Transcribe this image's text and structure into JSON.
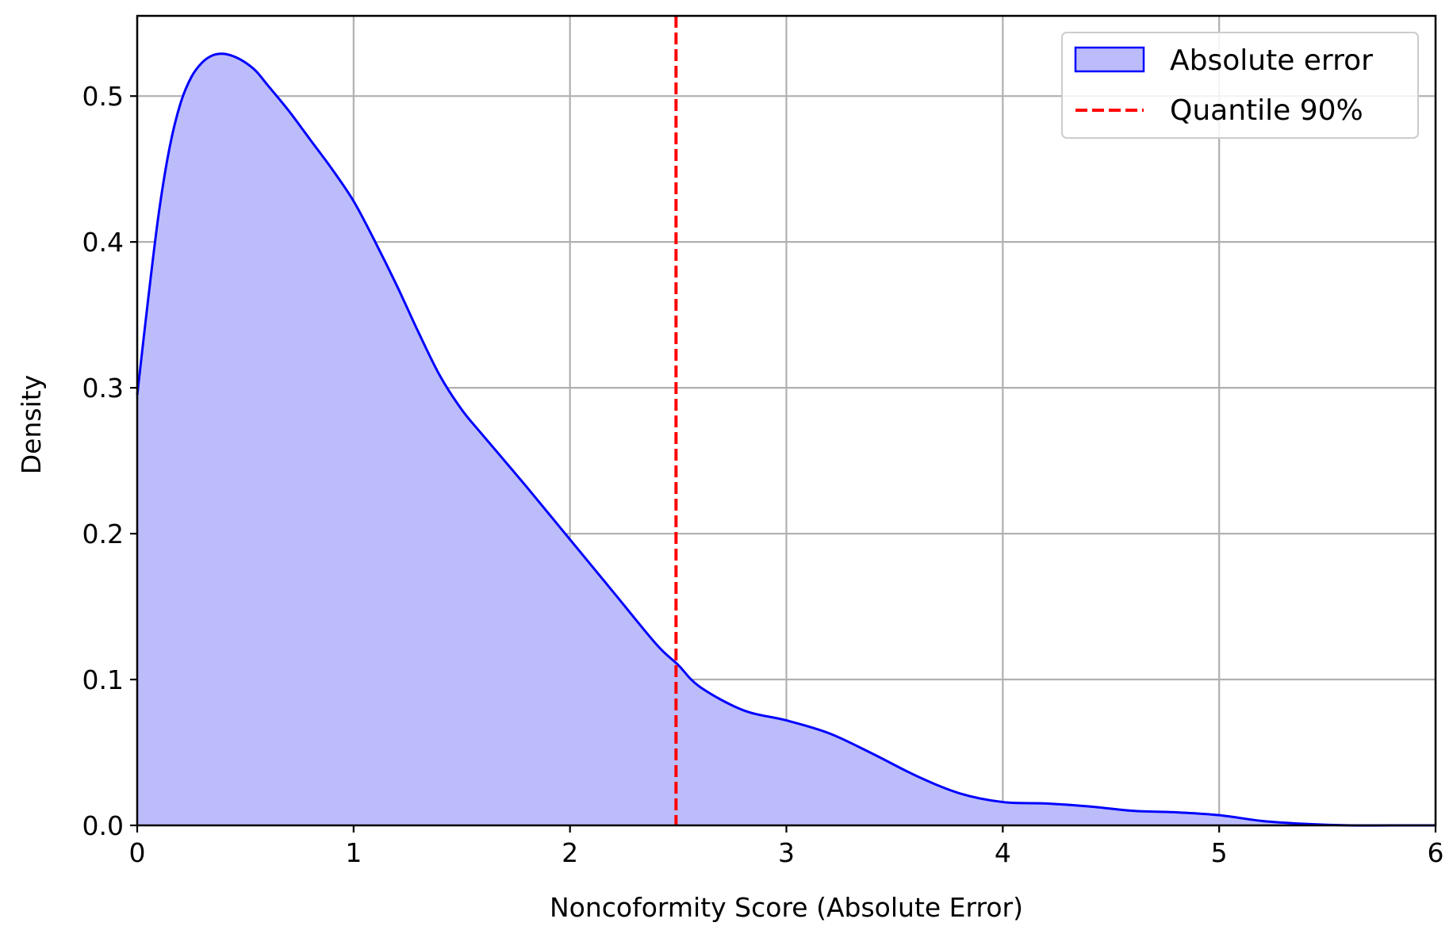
{
  "chart_data": {
    "type": "area",
    "xlabel": "Noncoformity Score (Absolute Error)",
    "ylabel": "Density",
    "xlim": [
      0,
      6
    ],
    "ylim": [
      0,
      0.555
    ],
    "xticks": [
      0,
      1,
      2,
      3,
      4,
      5,
      6
    ],
    "xtick_labels": [
      "0",
      "1",
      "2",
      "3",
      "4",
      "5",
      "6"
    ],
    "yticks": [
      0,
      0.1,
      0.2,
      0.3,
      0.4,
      0.5
    ],
    "ytick_labels": [
      "0.0",
      "0.1",
      "0.2",
      "0.3",
      "0.4",
      "0.5"
    ],
    "grid": true,
    "legend_position": "top-right",
    "series": [
      {
        "name": "Absolute error",
        "kind": "kde-fill",
        "line_color": "#0000ff",
        "fill_color": "#bcbcfb",
        "x": [
          0,
          0.05,
          0.1,
          0.15,
          0.2,
          0.25,
          0.3,
          0.35,
          0.4,
          0.45,
          0.5,
          0.55,
          0.6,
          0.7,
          0.8,
          0.9,
          1.0,
          1.1,
          1.2,
          1.3,
          1.4,
          1.5,
          1.6,
          1.8,
          2.0,
          2.2,
          2.4,
          2.5,
          2.6,
          2.8,
          3.0,
          3.2,
          3.4,
          3.6,
          3.8,
          4.0,
          4.2,
          4.4,
          4.6,
          4.8,
          5.0,
          5.2,
          5.4,
          5.6,
          5.8,
          6.0
        ],
        "y": [
          0.295,
          0.36,
          0.42,
          0.465,
          0.495,
          0.513,
          0.523,
          0.528,
          0.529,
          0.527,
          0.523,
          0.517,
          0.508,
          0.49,
          0.47,
          0.45,
          0.428,
          0.4,
          0.37,
          0.338,
          0.308,
          0.285,
          0.267,
          0.232,
          0.196,
          0.16,
          0.124,
          0.11,
          0.095,
          0.079,
          0.072,
          0.063,
          0.049,
          0.034,
          0.022,
          0.016,
          0.015,
          0.013,
          0.01,
          0.009,
          0.007,
          0.003,
          0.001,
          0.0,
          0.0,
          0.0
        ]
      }
    ],
    "vlines": [
      {
        "name": "Quantile 90%",
        "x": 2.49,
        "color": "#ff0000",
        "style": "dashed"
      }
    ]
  }
}
